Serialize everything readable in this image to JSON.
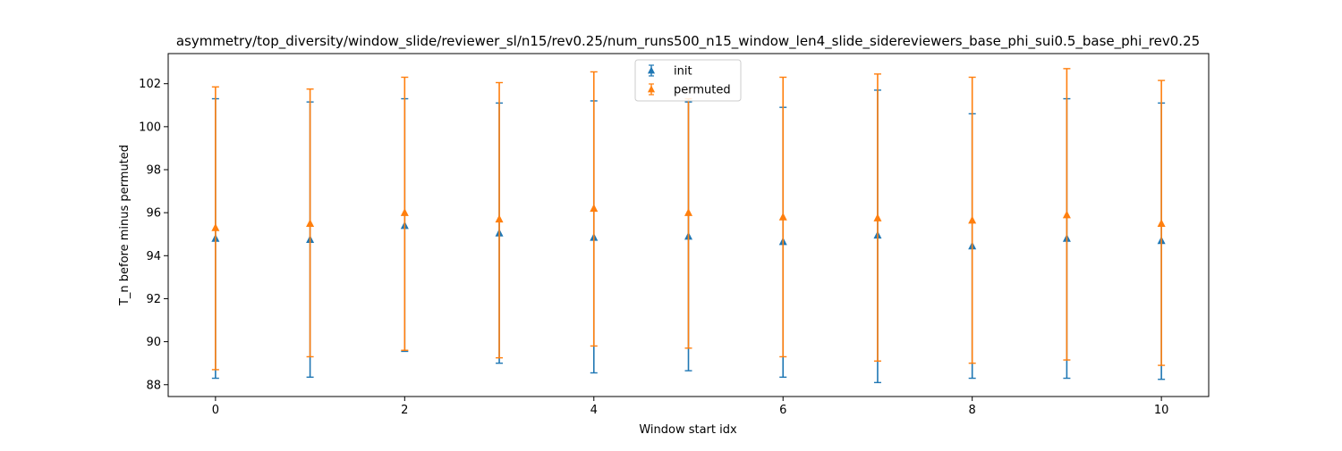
{
  "chart_data": {
    "type": "scatter",
    "title": "asymmetry/top_diversity/window_slide/reviewer_sl/n15/rev0.25/num_runs500_n15_window_len4_slide_sidereviewers_base_phi_sui0.5_base_phi_rev0.25",
    "xlabel": "Window start idx",
    "ylabel": "T_n before minus permuted",
    "xlim": [
      -0.5,
      10.5
    ],
    "ylim": [
      87.45,
      103.4
    ],
    "xticks": [
      0,
      2,
      4,
      6,
      8,
      10
    ],
    "yticks": [
      88,
      90,
      92,
      94,
      96,
      98,
      100,
      102
    ],
    "grid": false,
    "legend_position": "upper center",
    "marker": "triangle-up",
    "error_bars": true,
    "series": [
      {
        "name": "init",
        "color": "#1f77b4",
        "x": [
          0,
          1,
          2,
          3,
          4,
          5,
          6,
          7,
          8,
          9,
          10
        ],
        "y": [
          94.8,
          94.75,
          95.4,
          95.05,
          94.85,
          94.9,
          94.65,
          94.95,
          94.45,
          94.8,
          94.7
        ],
        "yerr_low": [
          88.3,
          88.35,
          89.55,
          89.0,
          88.55,
          88.65,
          88.35,
          88.1,
          88.3,
          88.3,
          88.25
        ],
        "yerr_high": [
          101.3,
          101.15,
          101.3,
          101.1,
          101.2,
          101.15,
          100.9,
          101.7,
          100.6,
          101.3,
          101.1
        ]
      },
      {
        "name": "permuted",
        "color": "#ff7f0e",
        "x": [
          0,
          1,
          2,
          3,
          4,
          5,
          6,
          7,
          8,
          9,
          10
        ],
        "y": [
          95.3,
          95.5,
          96.0,
          95.7,
          96.2,
          96.0,
          95.8,
          95.75,
          95.65,
          95.9,
          95.5
        ],
        "yerr_low": [
          88.7,
          89.3,
          89.6,
          89.25,
          89.8,
          89.7,
          89.3,
          89.1,
          89.0,
          89.15,
          88.9
        ],
        "yerr_high": [
          101.85,
          101.75,
          102.3,
          102.05,
          102.55,
          101.3,
          102.3,
          102.45,
          102.3,
          102.7,
          102.15
        ]
      }
    ]
  }
}
